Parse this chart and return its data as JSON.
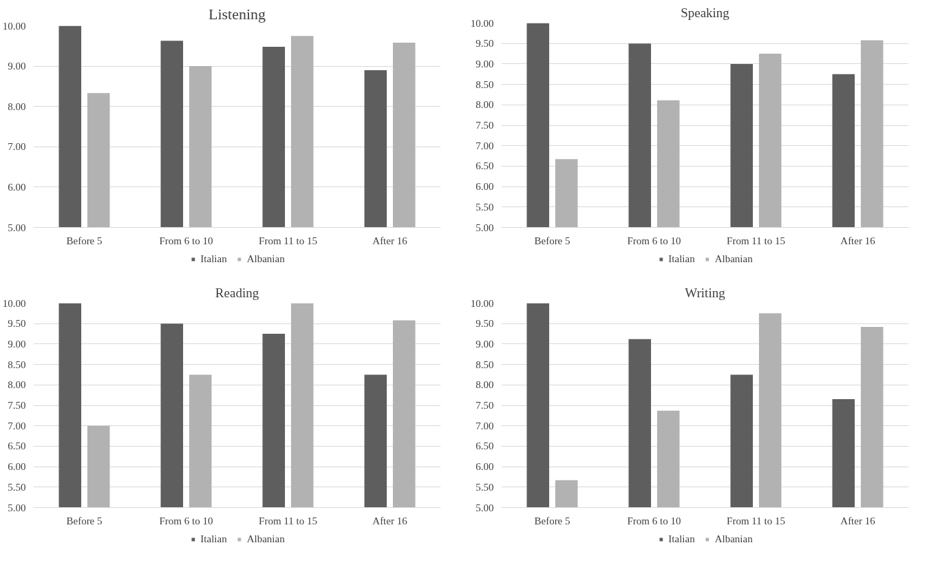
{
  "chart_data": [
    {
      "type": "bar",
      "title": "Listening",
      "categories": [
        "Before 5",
        "From 6 to 10",
        "From 11 to 15",
        "After 16"
      ],
      "ylim": [
        5,
        10
      ],
      "yticks": [
        {
          "value": 5,
          "label": "5.00"
        },
        {
          "value": 6,
          "label": "6.00"
        },
        {
          "value": 7,
          "label": "7.00"
        },
        {
          "value": 8,
          "label": "8.00"
        },
        {
          "value": 9,
          "label": "9.00"
        },
        {
          "value": 10,
          "label": "10.00"
        }
      ],
      "grid": "y",
      "legend": "bottom",
      "series": [
        {
          "name": "Italian",
          "color": "#5e5e5e",
          "values": [
            10.0,
            9.63,
            9.48,
            8.9
          ]
        },
        {
          "name": "Albanian",
          "color": "#b2b2b2",
          "values": [
            8.33,
            9.0,
            9.75,
            9.58
          ]
        }
      ]
    },
    {
      "type": "bar",
      "title": "Speaking",
      "categories": [
        "Before 5",
        "From 6 to 10",
        "From 11 to 15",
        "After 16"
      ],
      "ylim": [
        5,
        10
      ],
      "yticks": [
        {
          "value": 5,
          "label": "5.00"
        },
        {
          "value": 5.5,
          "label": "5.50"
        },
        {
          "value": 6,
          "label": "6.00"
        },
        {
          "value": 6.5,
          "label": "6.50"
        },
        {
          "value": 7,
          "label": "7.00"
        },
        {
          "value": 7.5,
          "label": "7.50"
        },
        {
          "value": 8,
          "label": "8.00"
        },
        {
          "value": 8.5,
          "label": "8.50"
        },
        {
          "value": 9,
          "label": "9.00"
        },
        {
          "value": 9.5,
          "label": "9.50"
        },
        {
          "value": 10,
          "label": "10.00"
        }
      ],
      "grid": "y",
      "legend": "bottom",
      "series": [
        {
          "name": "Italian",
          "color": "#5e5e5e",
          "values": [
            10.0,
            9.5,
            9.0,
            8.75
          ]
        },
        {
          "name": "Albanian",
          "color": "#b2b2b2",
          "values": [
            6.67,
            8.11,
            9.25,
            9.58
          ]
        }
      ]
    },
    {
      "type": "bar",
      "title": "Reading",
      "categories": [
        "Before 5",
        "From 6 to 10",
        "From 11 to 15",
        "After 16"
      ],
      "ylim": [
        5,
        10
      ],
      "yticks": [
        {
          "value": 5,
          "label": "5.00"
        },
        {
          "value": 5.5,
          "label": "5.50"
        },
        {
          "value": 6,
          "label": "6.00"
        },
        {
          "value": 6.5,
          "label": "6.50"
        },
        {
          "value": 7,
          "label": "7.00"
        },
        {
          "value": 7.5,
          "label": "7.50"
        },
        {
          "value": 8,
          "label": "8.00"
        },
        {
          "value": 8.5,
          "label": "8.50"
        },
        {
          "value": 9,
          "label": "9.00"
        },
        {
          "value": 9.5,
          "label": "9.50"
        },
        {
          "value": 10,
          "label": "10.00"
        }
      ],
      "grid": "y",
      "legend": "bottom",
      "series": [
        {
          "name": "Italian",
          "color": "#5e5e5e",
          "values": [
            10.0,
            9.5,
            9.25,
            8.25
          ]
        },
        {
          "name": "Albanian",
          "color": "#b2b2b2",
          "values": [
            7.0,
            8.25,
            10.0,
            9.58
          ]
        }
      ]
    },
    {
      "type": "bar",
      "title": "Writing",
      "categories": [
        "Before 5",
        "From 6 to 10",
        "From 11 to 15",
        "After 16"
      ],
      "ylim": [
        5,
        10
      ],
      "yticks": [
        {
          "value": 5,
          "label": "5.00"
        },
        {
          "value": 5.5,
          "label": "5.50"
        },
        {
          "value": 6,
          "label": "6.00"
        },
        {
          "value": 6.5,
          "label": "6.50"
        },
        {
          "value": 7,
          "label": "7.00"
        },
        {
          "value": 7.5,
          "label": "7.50"
        },
        {
          "value": 8,
          "label": "8.00"
        },
        {
          "value": 8.5,
          "label": "8.50"
        },
        {
          "value": 9,
          "label": "9.00"
        },
        {
          "value": 9.5,
          "label": "9.50"
        },
        {
          "value": 10,
          "label": "10.00"
        }
      ],
      "grid": "y",
      "legend": "bottom",
      "series": [
        {
          "name": "Italian",
          "color": "#5e5e5e",
          "values": [
            10.0,
            9.12,
            8.25,
            7.65
          ]
        },
        {
          "name": "Albanian",
          "color": "#b2b2b2",
          "values": [
            5.67,
            7.37,
            9.75,
            9.42
          ]
        }
      ]
    }
  ]
}
